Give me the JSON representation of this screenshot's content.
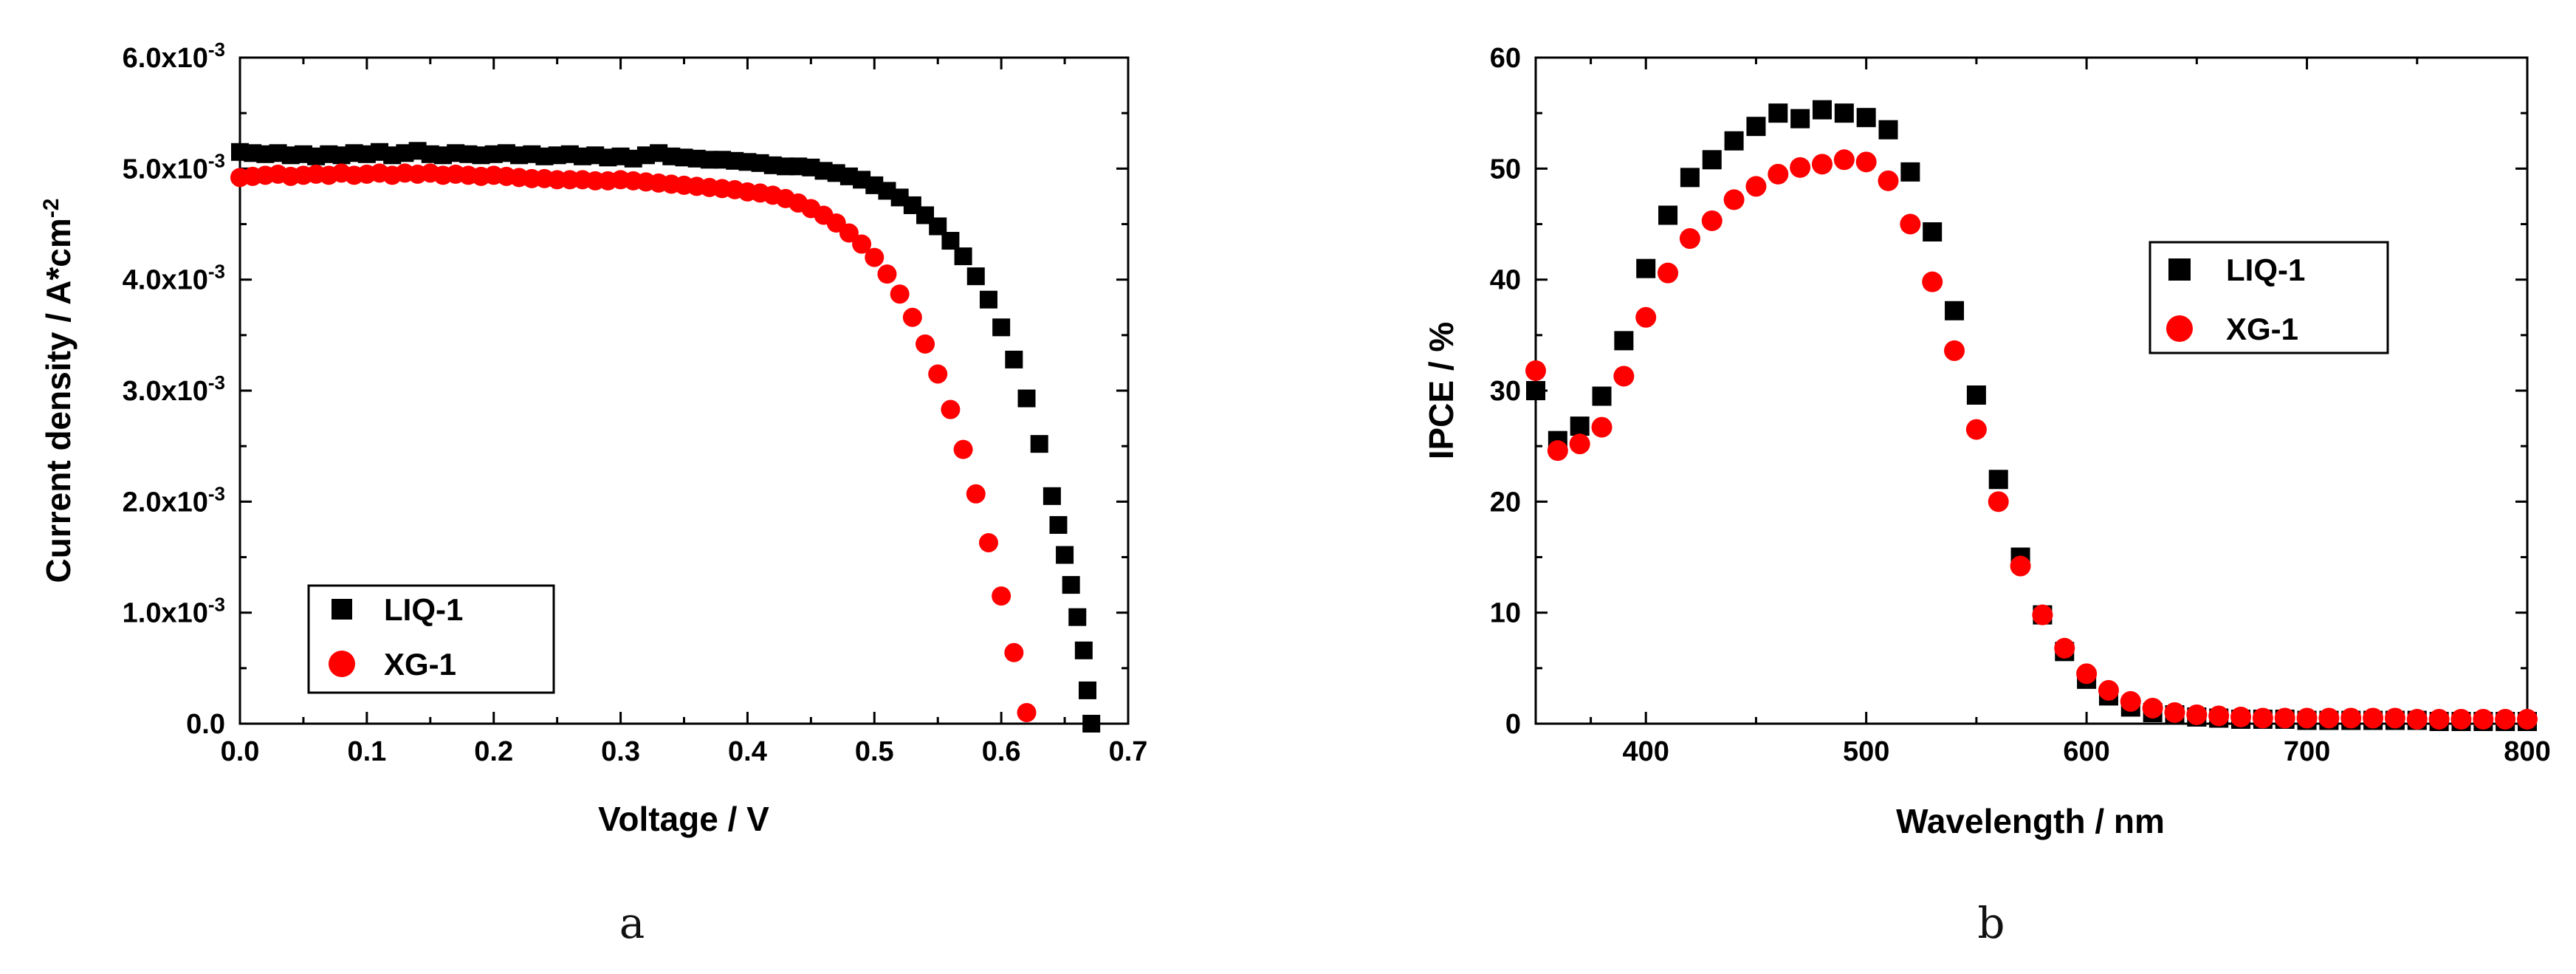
{
  "figure_labels": {
    "a": "a",
    "b": "b"
  },
  "chart_data": [
    {
      "type": "scatter",
      "panel": "a",
      "title": "",
      "xlabel": "Voltage / V",
      "ylabel": "Current density / A*cm-2",
      "xlim": [
        0.0,
        0.7
      ],
      "ylim": [
        0.0,
        0.006
      ],
      "xticks": [
        0.0,
        0.1,
        0.2,
        0.3,
        0.4,
        0.5,
        0.6,
        0.7
      ],
      "xtick_labels": [
        "0.0",
        "0.1",
        "0.2",
        "0.3",
        "0.4",
        "0.5",
        "0.6",
        "0.7"
      ],
      "yticks": [
        0.0,
        0.001,
        0.002,
        0.003,
        0.004,
        0.005,
        0.006
      ],
      "ytick_labels": [
        "0.0",
        "1.0x10-3",
        "2.0x10-3",
        "3.0x10-3",
        "4.0x10-3",
        "5.0x10-3",
        "6.0x10-3"
      ],
      "legend_position": "bottom-left",
      "series": [
        {
          "name": "LIQ-1",
          "marker": "square",
          "color": "#000000",
          "points": [
            [
              0.0,
              0.00515
            ],
            [
              0.01,
              0.00514
            ],
            [
              0.02,
              0.00513
            ],
            [
              0.03,
              0.00514
            ],
            [
              0.04,
              0.00512
            ],
            [
              0.05,
              0.00513
            ],
            [
              0.06,
              0.00511
            ],
            [
              0.07,
              0.00513
            ],
            [
              0.08,
              0.00512
            ],
            [
              0.09,
              0.00514
            ],
            [
              0.1,
              0.00513
            ],
            [
              0.11,
              0.00515
            ],
            [
              0.12,
              0.00512
            ],
            [
              0.13,
              0.00514
            ],
            [
              0.14,
              0.00516
            ],
            [
              0.15,
              0.00513
            ],
            [
              0.16,
              0.00512
            ],
            [
              0.17,
              0.00514
            ],
            [
              0.18,
              0.00513
            ],
            [
              0.19,
              0.00512
            ],
            [
              0.2,
              0.00513
            ],
            [
              0.21,
              0.00514
            ],
            [
              0.22,
              0.00512
            ],
            [
              0.23,
              0.00513
            ],
            [
              0.24,
              0.00511
            ],
            [
              0.25,
              0.00512
            ],
            [
              0.26,
              0.00513
            ],
            [
              0.27,
              0.00511
            ],
            [
              0.28,
              0.00512
            ],
            [
              0.29,
              0.0051
            ],
            [
              0.3,
              0.00511
            ],
            [
              0.31,
              0.00509
            ],
            [
              0.32,
              0.00512
            ],
            [
              0.33,
              0.00514
            ],
            [
              0.34,
              0.00511
            ],
            [
              0.35,
              0.0051
            ],
            [
              0.36,
              0.00509
            ],
            [
              0.37,
              0.00508
            ],
            [
              0.38,
              0.00508
            ],
            [
              0.39,
              0.00507
            ],
            [
              0.4,
              0.00506
            ],
            [
              0.41,
              0.00505
            ],
            [
              0.42,
              0.00503
            ],
            [
              0.43,
              0.00502
            ],
            [
              0.44,
              0.00502
            ],
            [
              0.45,
              0.00501
            ],
            [
              0.46,
              0.00498
            ],
            [
              0.47,
              0.00496
            ],
            [
              0.48,
              0.00493
            ],
            [
              0.49,
              0.0049
            ],
            [
              0.5,
              0.00485
            ],
            [
              0.51,
              0.0048
            ],
            [
              0.52,
              0.00474
            ],
            [
              0.53,
              0.00467
            ],
            [
              0.54,
              0.00458
            ],
            [
              0.55,
              0.00448
            ],
            [
              0.56,
              0.00435
            ],
            [
              0.57,
              0.00421
            ],
            [
              0.58,
              0.00403
            ],
            [
              0.59,
              0.00382
            ],
            [
              0.6,
              0.00357
            ],
            [
              0.61,
              0.00328
            ],
            [
              0.62,
              0.00293
            ],
            [
              0.63,
              0.00252
            ],
            [
              0.64,
              0.00205
            ],
            [
              0.645,
              0.00179
            ],
            [
              0.65,
              0.00152
            ],
            [
              0.655,
              0.00125
            ],
            [
              0.66,
              0.00096
            ],
            [
              0.665,
              0.00066
            ],
            [
              0.668,
              0.0003
            ],
            [
              0.671,
              0.0
            ]
          ]
        },
        {
          "name": "XG-1",
          "marker": "circle",
          "color": "#ff0000",
          "points": [
            [
              0.0,
              0.00492
            ],
            [
              0.01,
              0.00493
            ],
            [
              0.02,
              0.00494
            ],
            [
              0.03,
              0.00495
            ],
            [
              0.04,
              0.00493
            ],
            [
              0.05,
              0.00494
            ],
            [
              0.06,
              0.00495
            ],
            [
              0.07,
              0.00494
            ],
            [
              0.08,
              0.00496
            ],
            [
              0.09,
              0.00494
            ],
            [
              0.1,
              0.00495
            ],
            [
              0.11,
              0.00496
            ],
            [
              0.12,
              0.00494
            ],
            [
              0.13,
              0.00496
            ],
            [
              0.14,
              0.00495
            ],
            [
              0.15,
              0.00496
            ],
            [
              0.16,
              0.00494
            ],
            [
              0.17,
              0.00495
            ],
            [
              0.18,
              0.00494
            ],
            [
              0.19,
              0.00493
            ],
            [
              0.2,
              0.00494
            ],
            [
              0.21,
              0.00493
            ],
            [
              0.22,
              0.00492
            ],
            [
              0.23,
              0.00491
            ],
            [
              0.24,
              0.00491
            ],
            [
              0.25,
              0.0049
            ],
            [
              0.26,
              0.0049
            ],
            [
              0.27,
              0.0049
            ],
            [
              0.28,
              0.00489
            ],
            [
              0.29,
              0.00489
            ],
            [
              0.3,
              0.0049
            ],
            [
              0.31,
              0.00489
            ],
            [
              0.32,
              0.00488
            ],
            [
              0.33,
              0.00487
            ],
            [
              0.34,
              0.00486
            ],
            [
              0.35,
              0.00485
            ],
            [
              0.36,
              0.00484
            ],
            [
              0.37,
              0.00483
            ],
            [
              0.38,
              0.00482
            ],
            [
              0.39,
              0.00481
            ],
            [
              0.4,
              0.00479
            ],
            [
              0.41,
              0.00478
            ],
            [
              0.42,
              0.00476
            ],
            [
              0.43,
              0.00473
            ],
            [
              0.44,
              0.00469
            ],
            [
              0.45,
              0.00464
            ],
            [
              0.46,
              0.00458
            ],
            [
              0.47,
              0.00451
            ],
            [
              0.48,
              0.00442
            ],
            [
              0.49,
              0.00432
            ],
            [
              0.5,
              0.0042
            ],
            [
              0.51,
              0.00405
            ],
            [
              0.52,
              0.00387
            ],
            [
              0.53,
              0.00366
            ],
            [
              0.54,
              0.00342
            ],
            [
              0.55,
              0.00315
            ],
            [
              0.56,
              0.00283
            ],
            [
              0.57,
              0.00247
            ],
            [
              0.58,
              0.00207
            ],
            [
              0.59,
              0.00163
            ],
            [
              0.6,
              0.00115
            ],
            [
              0.61,
              0.00064
            ],
            [
              0.62,
              0.0001
            ]
          ]
        }
      ]
    },
    {
      "type": "scatter",
      "panel": "b",
      "title": "",
      "xlabel": "Wavelength / nm",
      "ylabel": "IPCE / %",
      "xlim": [
        350,
        800
      ],
      "ylim": [
        0,
        60
      ],
      "xticks": [
        400,
        500,
        600,
        700,
        800
      ],
      "xtick_labels": [
        "400",
        "500",
        "600",
        "700",
        "800"
      ],
      "yticks": [
        0,
        10,
        20,
        30,
        40,
        50,
        60
      ],
      "ytick_labels": [
        "0",
        "10",
        "20",
        "30",
        "40",
        "50",
        "60"
      ],
      "legend_position": "center-right",
      "series": [
        {
          "name": "LIQ-1",
          "marker": "square",
          "color": "#000000",
          "points": [
            [
              350,
              30.0
            ],
            [
              360,
              25.5
            ],
            [
              370,
              26.8
            ],
            [
              380,
              29.5
            ],
            [
              390,
              34.5
            ],
            [
              400,
              41.0
            ],
            [
              410,
              45.8
            ],
            [
              420,
              49.2
            ],
            [
              430,
              50.8
            ],
            [
              440,
              52.5
            ],
            [
              450,
              53.8
            ],
            [
              460,
              55.0
            ],
            [
              470,
              54.5
            ],
            [
              480,
              55.3
            ],
            [
              490,
              55.0
            ],
            [
              500,
              54.6
            ],
            [
              510,
              53.5
            ],
            [
              520,
              49.7
            ],
            [
              530,
              44.3
            ],
            [
              540,
              37.2
            ],
            [
              550,
              29.6
            ],
            [
              560,
              22.0
            ],
            [
              570,
              15.0
            ],
            [
              580,
              9.8
            ],
            [
              590,
              6.5
            ],
            [
              600,
              4.0
            ],
            [
              610,
              2.5
            ],
            [
              620,
              1.5
            ],
            [
              630,
              1.0
            ],
            [
              640,
              0.8
            ],
            [
              650,
              0.6
            ],
            [
              660,
              0.5
            ],
            [
              670,
              0.4
            ],
            [
              680,
              0.4
            ],
            [
              690,
              0.4
            ],
            [
              700,
              0.3
            ],
            [
              710,
              0.3
            ],
            [
              720,
              0.3
            ],
            [
              730,
              0.3
            ],
            [
              740,
              0.3
            ],
            [
              750,
              0.3
            ],
            [
              760,
              0.2
            ],
            [
              770,
              0.2
            ],
            [
              780,
              0.2
            ],
            [
              790,
              0.2
            ],
            [
              800,
              0.2
            ]
          ]
        },
        {
          "name": "XG-1",
          "marker": "circle",
          "color": "#ff0000",
          "points": [
            [
              350,
              31.8
            ],
            [
              360,
              24.6
            ],
            [
              370,
              25.2
            ],
            [
              380,
              26.7
            ],
            [
              390,
              31.3
            ],
            [
              400,
              36.6
            ],
            [
              410,
              40.6
            ],
            [
              420,
              43.7
            ],
            [
              430,
              45.3
            ],
            [
              440,
              47.2
            ],
            [
              450,
              48.4
            ],
            [
              460,
              49.5
            ],
            [
              470,
              50.1
            ],
            [
              480,
              50.4
            ],
            [
              490,
              50.8
            ],
            [
              500,
              50.6
            ],
            [
              510,
              48.9
            ],
            [
              520,
              45.0
            ],
            [
              530,
              39.8
            ],
            [
              540,
              33.6
            ],
            [
              550,
              26.5
            ],
            [
              560,
              20.0
            ],
            [
              570,
              14.2
            ],
            [
              580,
              9.8
            ],
            [
              590,
              6.8
            ],
            [
              600,
              4.5
            ],
            [
              610,
              3.0
            ],
            [
              620,
              2.0
            ],
            [
              630,
              1.4
            ],
            [
              640,
              1.0
            ],
            [
              650,
              0.8
            ],
            [
              660,
              0.7
            ],
            [
              670,
              0.6
            ],
            [
              680,
              0.5
            ],
            [
              690,
              0.5
            ],
            [
              700,
              0.5
            ],
            [
              710,
              0.5
            ],
            [
              720,
              0.5
            ],
            [
              730,
              0.5
            ],
            [
              740,
              0.5
            ],
            [
              750,
              0.4
            ],
            [
              760,
              0.4
            ],
            [
              770,
              0.4
            ],
            [
              780,
              0.4
            ],
            [
              790,
              0.4
            ],
            [
              800,
              0.4
            ]
          ]
        }
      ]
    }
  ]
}
